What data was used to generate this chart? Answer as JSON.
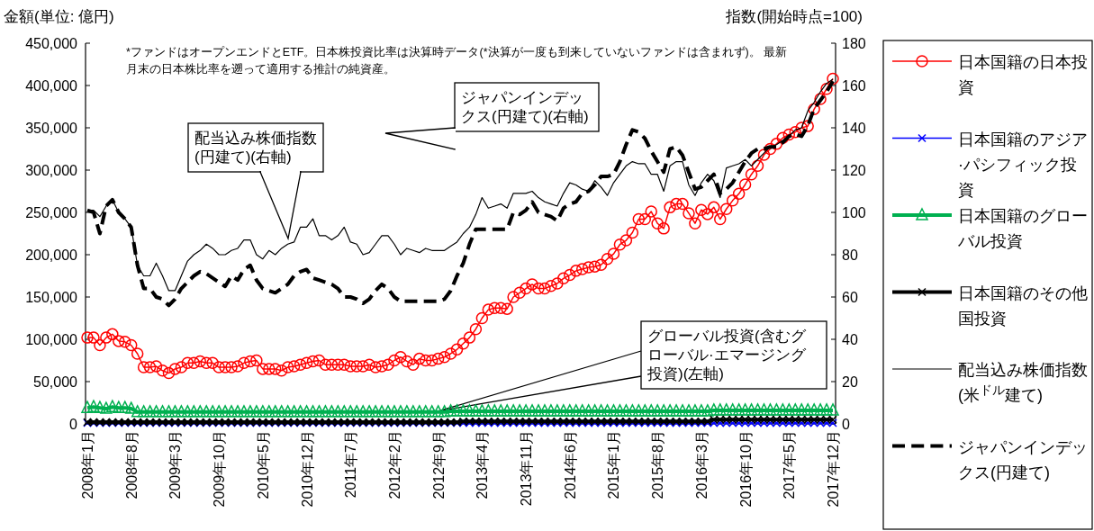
{
  "chart_data": {
    "type": "line",
    "ylabel": "金額(単位: 億円)",
    "y2label": "指数(開始時点=100)",
    "annotations": [
      "*ファンドはオープンエンドとETF。日本株投資比率は決算時データ(*決算が一度も到来していないファンドは含まれず)。 最新月末の日本株比率を遡って適用する推計の純資産。",
      "配当込み株価指数(円建て)(右軸)",
      "ジャパンインデックス(円建て)(右軸)",
      {
        "text": "グローバル投資(含むグローバル·エマージング投資)(左軸)",
        "x": "2012年9月",
        "y": 15000
      }
    ],
    "categories": [
      "2008年1月",
      null,
      null,
      null,
      null,
      null,
      null,
      "2008年8月",
      null,
      null,
      null,
      null,
      null,
      null,
      "2009年3月",
      null,
      null,
      null,
      null,
      null,
      null,
      "2009年10月",
      null,
      null,
      null,
      null,
      null,
      null,
      "2010年5月",
      null,
      null,
      null,
      null,
      null,
      null,
      "2010年12月",
      null,
      null,
      null,
      null,
      null,
      null,
      "2011年7月",
      null,
      null,
      null,
      null,
      null,
      null,
      "2012年2月",
      null,
      null,
      null,
      null,
      null,
      null,
      "2012年9月",
      null,
      null,
      null,
      null,
      null,
      null,
      "2013年4月",
      null,
      null,
      null,
      null,
      null,
      null,
      "2013年11月",
      null,
      null,
      null,
      null,
      null,
      null,
      "2014年6月",
      null,
      null,
      null,
      null,
      null,
      null,
      "2015年1月",
      null,
      null,
      null,
      null,
      null,
      null,
      "2015年8月",
      null,
      null,
      null,
      null,
      null,
      null,
      "2016年3月",
      null,
      null,
      null,
      null,
      null,
      null,
      "2016年10月",
      null,
      null,
      null,
      null,
      null,
      null,
      "2017年5月",
      null,
      null,
      null,
      null,
      null,
      null,
      "2017年12月"
    ],
    "ylim": [
      0,
      450000
    ],
    "yticks": [
      {
        "value": 0,
        "label": "0"
      },
      {
        "value": 50000,
        "label": "50,000"
      },
      {
        "value": 100000,
        "label": "100,000"
      },
      {
        "value": 150000,
        "label": "150,000"
      },
      {
        "value": 200000,
        "label": "200,000"
      },
      {
        "value": 250000,
        "label": "250,000"
      },
      {
        "value": 300000,
        "label": "300,000"
      },
      {
        "value": 350000,
        "label": "350,000"
      },
      {
        "value": 400000,
        "label": "400,000"
      },
      {
        "value": 450000,
        "label": "450,000"
      }
    ],
    "y2lim": [
      0,
      180
    ],
    "y2ticks": [
      0,
      20,
      40,
      60,
      80,
      100,
      120,
      140,
      160,
      180
    ],
    "legend": "right",
    "series": [
      {
        "name": "日本国籍の日本投資",
        "color": "#ff0000",
        "marker": "circle",
        "values": [
          102000,
          102000,
          93000,
          102000,
          106000,
          98000,
          97000,
          93000,
          83000,
          67000,
          67000,
          68000,
          63000,
          60000,
          65000,
          67000,
          72000,
          72000,
          74000,
          72000,
          72000,
          67000,
          67000,
          67000,
          68000,
          72000,
          74000,
          75000,
          65000,
          65000,
          65000,
          63000,
          67000,
          68000,
          70000,
          72000,
          74000,
          75000,
          70000,
          70000,
          70000,
          70000,
          68000,
          68000,
          68000,
          70000,
          67000,
          68000,
          70000,
          75000,
          79000,
          74000,
          70000,
          77000,
          75000,
          75000,
          77000,
          79000,
          83000,
          88000,
          95000,
          102000,
          112000,
          125000,
          135000,
          137000,
          137000,
          136000,
          150000,
          155000,
          160000,
          165000,
          160000,
          160000,
          163000,
          166000,
          172000,
          176000,
          181000,
          183000,
          185000,
          186000,
          188000,
          195000,
          201000,
          212000,
          217000,
          226000,
          242000,
          242000,
          251000,
          237000,
          231000,
          256000,
          260000,
          260000,
          249000,
          237000,
          253000,
          248000,
          256000,
          242000,
          254000,
          264000,
          272000,
          283000,
          295000,
          305000,
          318000,
          325000,
          331000,
          338000,
          342000,
          345000,
          350000,
          352000,
          372000,
          384000,
          396000,
          408000
        ]
      },
      {
        "name": "日本国籍のアジア·パシフィック投資",
        "color": "#0000ff",
        "marker": "cross",
        "values": [
          1000,
          1000,
          1000,
          1000,
          1000,
          1000,
          1000,
          1000,
          1000,
          1000,
          1000,
          1000,
          1000,
          1000,
          1000,
          1000,
          1000,
          1000,
          1000,
          1000,
          1000,
          1000,
          1000,
          1000,
          1000,
          1000,
          1000,
          1000,
          1000,
          1000,
          1000,
          1000,
          1000,
          1000,
          1000,
          1000,
          1000,
          1000,
          1000,
          1000,
          1000,
          1000,
          1000,
          1000,
          1000,
          1000,
          1000,
          1000,
          1000,
          1000,
          1000,
          1000,
          1000,
          1000,
          1000,
          1000,
          1000,
          1000,
          1000,
          1000,
          1000,
          1000,
          1000,
          1000,
          1000,
          1000,
          1000,
          1000,
          1000,
          1000,
          1000,
          1000,
          1000,
          1000,
          1000,
          1000,
          1000,
          1000,
          1000,
          1000,
          1000,
          1000,
          1000,
          1000,
          1000,
          1000,
          1000,
          1000,
          1000,
          1000,
          1000,
          1000,
          1000,
          1000,
          1000,
          1000,
          1000,
          1000,
          1000,
          1000,
          1000,
          1000,
          1000,
          1000,
          1000,
          1000,
          1000,
          1000,
          1000,
          1000,
          1000,
          1000,
          1000,
          1000,
          1000,
          1000,
          1000,
          1000,
          1000,
          1000
        ]
      },
      {
        "name": "日本国籍のグローバル投資",
        "color": "#00b050",
        "marker": "triangle",
        "values": [
          19000,
          20000,
          19000,
          18000,
          20000,
          19000,
          19000,
          18000,
          14000,
          14000,
          14000,
          14000,
          14000,
          14000,
          14000,
          14000,
          14000,
          14000,
          14000,
          14000,
          14000,
          14000,
          14000,
          14000,
          14000,
          14000,
          14000,
          14000,
          14000,
          14000,
          14000,
          14000,
          14000,
          14000,
          14000,
          14000,
          14000,
          14000,
          14000,
          14000,
          14000,
          14000,
          14000,
          14000,
          14000,
          14000,
          14000,
          14000,
          14000,
          14000,
          14000,
          14000,
          14000,
          14000,
          14000,
          14000,
          14000,
          14000,
          15000,
          15000,
          15000,
          15000,
          15000,
          15000,
          15000,
          15000,
          15000,
          15000,
          15000,
          15000,
          15000,
          15000,
          15000,
          15000,
          15000,
          15000,
          15000,
          15000,
          15000,
          15000,
          15000,
          15000,
          15000,
          15000,
          15000,
          15000,
          15000,
          15000,
          15000,
          15000,
          15000,
          15000,
          15000,
          15000,
          15000,
          15000,
          15000,
          15000,
          15000,
          15000,
          16000,
          16000,
          16000,
          16000,
          16000,
          16000,
          16000,
          16000,
          16000,
          16000,
          16000,
          16000,
          16000,
          16000,
          16000,
          16000,
          16000,
          16000,
          16000,
          16000
        ]
      },
      {
        "name": "日本国籍のその他国投資",
        "color": "#000000",
        "marker": "cross",
        "values": [
          2000,
          2000,
          2000,
          2000,
          2000,
          2000,
          2000,
          2000,
          2000,
          2000,
          2000,
          2000,
          2000,
          2000,
          2000,
          2000,
          2000,
          2000,
          2000,
          2000,
          2000,
          2000,
          2000,
          2000,
          2000,
          2000,
          2000,
          2000,
          2000,
          2000,
          2000,
          2000,
          2000,
          2000,
          2000,
          2000,
          2000,
          2000,
          2000,
          2000,
          2000,
          2000,
          2000,
          2000,
          2000,
          2000,
          2000,
          2000,
          2000,
          2000,
          2000,
          2000,
          2000,
          2000,
          2000,
          2000,
          2000,
          2000,
          2000,
          2000,
          3000,
          3000,
          3000,
          3000,
          3000,
          3000,
          3000,
          3000,
          3000,
          3000,
          3000,
          3000,
          3000,
          3000,
          3000,
          3000,
          3000,
          3000,
          3000,
          3000,
          3000,
          3000,
          3000,
          3000,
          3000,
          3000,
          3000,
          3000,
          3000,
          3000,
          3000,
          3000,
          3000,
          3000,
          3000,
          3000,
          3000,
          3000,
          3000,
          3000,
          5000,
          5000,
          5000,
          5000,
          5000,
          5000,
          5000,
          5000,
          5000,
          5000,
          5000,
          5000,
          5000,
          5000,
          5000,
          5000,
          5000,
          5000,
          5000,
          5000
        ]
      },
      {
        "name": "配当込み株価指数(米$^{ドル}$建て)",
        "color": "#000000",
        "axis": "y2",
        "marker": "none",
        "line_style": "solid",
        "values": [
          101,
          101,
          98,
          103,
          106,
          100,
          97,
          93,
          75,
          70,
          70,
          76,
          70,
          63,
          63,
          70,
          77,
          80,
          82,
          85,
          83,
          80,
          80,
          82,
          83,
          87,
          87,
          80,
          78,
          82,
          80,
          83,
          85,
          86,
          93,
          93,
          97,
          89,
          89,
          87,
          89,
          93,
          86,
          85,
          80,
          81,
          85,
          89,
          89,
          85,
          80,
          83,
          82,
          81,
          83,
          82,
          82,
          82,
          84,
          86,
          90,
          93,
          99,
          107,
          102,
          103,
          104,
          102,
          109,
          109,
          109,
          110,
          107,
          105,
          104,
          103,
          109,
          114,
          113,
          111,
          110,
          115,
          112,
          108,
          114,
          118,
          122,
          124,
          123,
          123,
          118,
          118,
          110,
          122,
          124,
          124,
          113,
          108,
          114,
          118,
          115,
          107,
          121,
          122,
          123,
          125,
          122,
          125,
          128,
          131,
          132,
          134,
          136,
          139,
          140,
          148,
          152,
          157,
          161,
          163
        ]
      },
      {
        "name": "ジャパンインデックス(円建て)",
        "color": "#000000",
        "axis": "y2",
        "marker": "none",
        "line_style": "dashed",
        "values": [
          101,
          100,
          90,
          103,
          106,
          100,
          97,
          93,
          75,
          64,
          64,
          60,
          59,
          56,
          59,
          64,
          67,
          70,
          72,
          71,
          69,
          67,
          65,
          70,
          68,
          73,
          75,
          68,
          64,
          63,
          62,
          64,
          66,
          70,
          72,
          73,
          69,
          68,
          67,
          66,
          64,
          60,
          60,
          59,
          57,
          59,
          63,
          66,
          64,
          60,
          58,
          58,
          58,
          58,
          58,
          58,
          58,
          59,
          63,
          70,
          76,
          85,
          92,
          92,
          92,
          92,
          92,
          92,
          100,
          99,
          101,
          105,
          100,
          99,
          98,
          96,
          102,
          104,
          105,
          109,
          110,
          113,
          117,
          117,
          118,
          124,
          132,
          139,
          138,
          135,
          129,
          124,
          119,
          130,
          131,
          127,
          119,
          111,
          112,
          115,
          118,
          109,
          111,
          114,
          119,
          124,
          128,
          130,
          130,
          131,
          131,
          133,
          136,
          137,
          136,
          141,
          149,
          153,
          157,
          162
        ]
      }
    ]
  }
}
